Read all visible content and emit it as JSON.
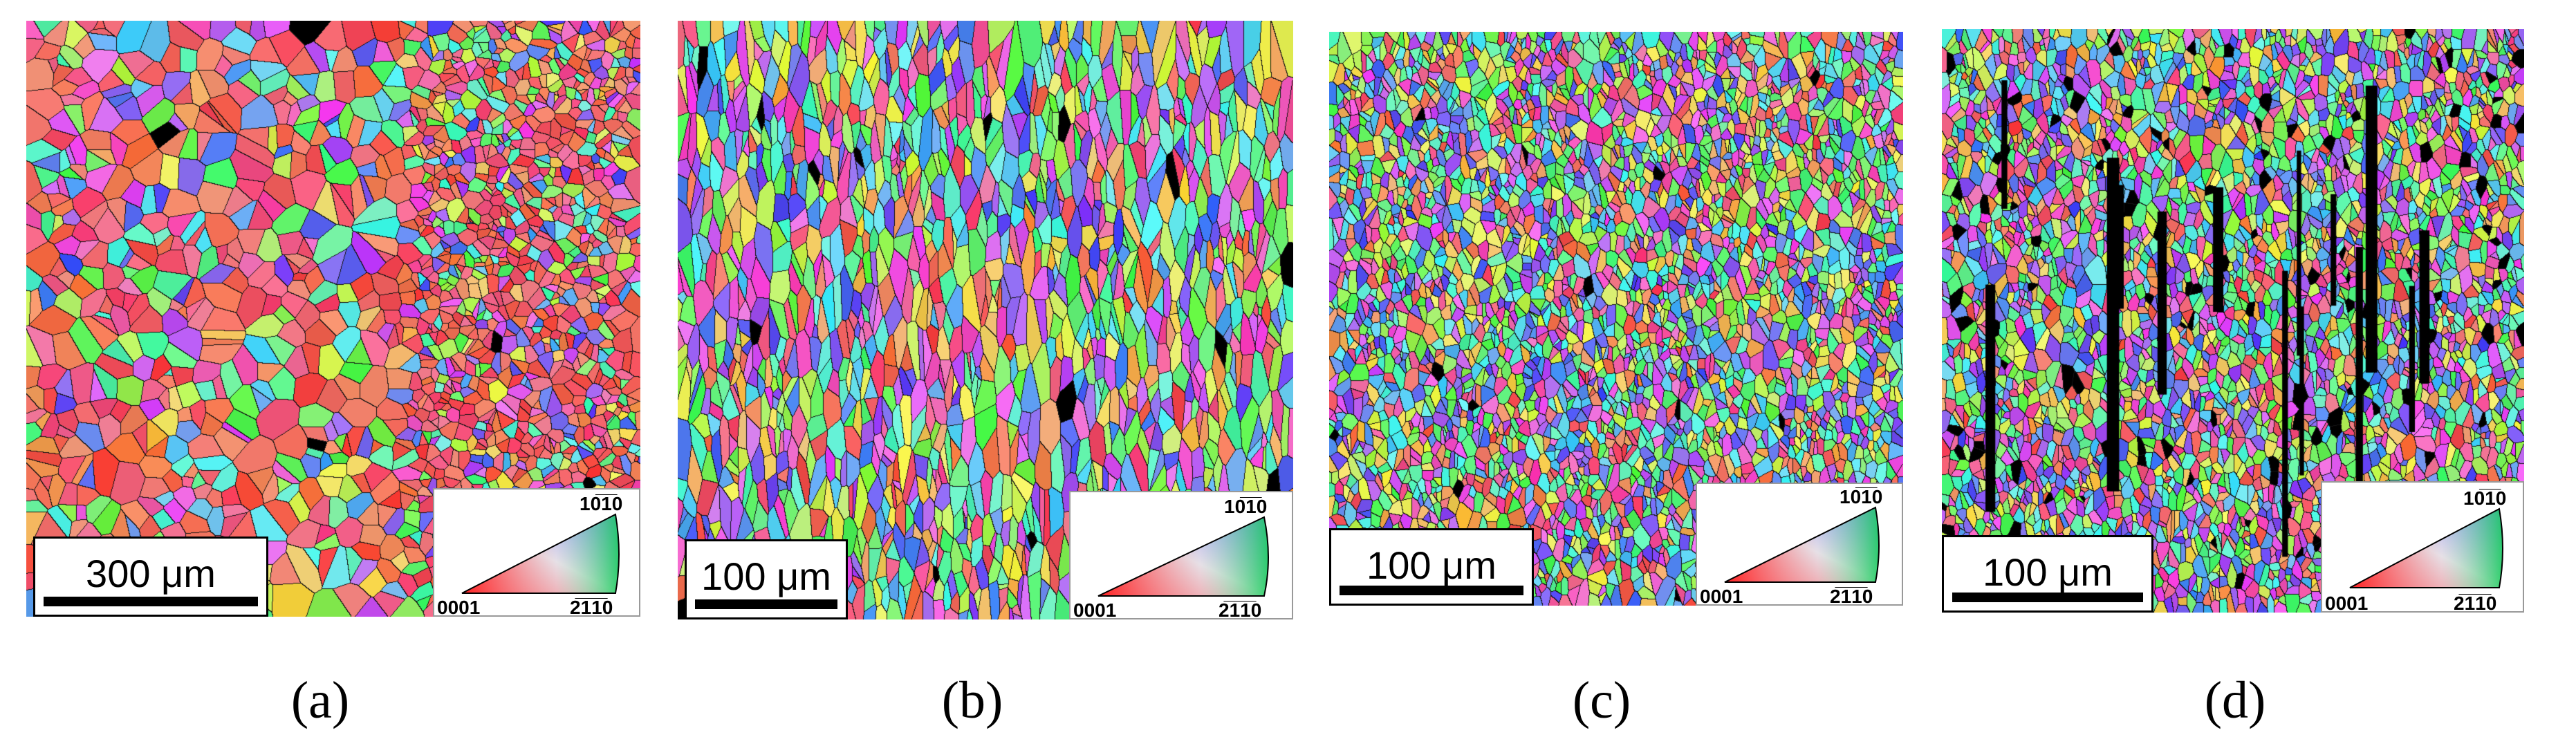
{
  "panels": [
    {
      "id": "a",
      "caption": "(a)",
      "scale_label": "300 μm",
      "grain_size": "coarse",
      "porosity": "low",
      "legend": {
        "top": "10̅1̅0",
        "left": "0001",
        "right": "2̅1̅1̅0"
      }
    },
    {
      "id": "b",
      "caption": "(b)",
      "scale_label": "100 μm",
      "grain_size": "mixed",
      "porosity": "medium",
      "legend": {
        "top": "10̅1̅0",
        "left": "0001",
        "right": "2̅1̅1̅0"
      }
    },
    {
      "id": "c",
      "caption": "(c)",
      "scale_label": "100 μm",
      "grain_size": "fine",
      "porosity": "low",
      "legend": {
        "top": "10̅1̅0",
        "left": "0001",
        "right": "2̅1̅1̅0"
      }
    },
    {
      "id": "d",
      "caption": "(d)",
      "scale_label": "100 μm",
      "grain_size": "fine",
      "porosity": "high",
      "legend": {
        "top": "10̅1̅0",
        "left": "0001",
        "right": "2̅1̅1̅0"
      }
    }
  ],
  "legend_colors": {
    "0001": "#ff2020",
    "10-10": "#2040ff",
    "2-1-10": "#20d020"
  }
}
